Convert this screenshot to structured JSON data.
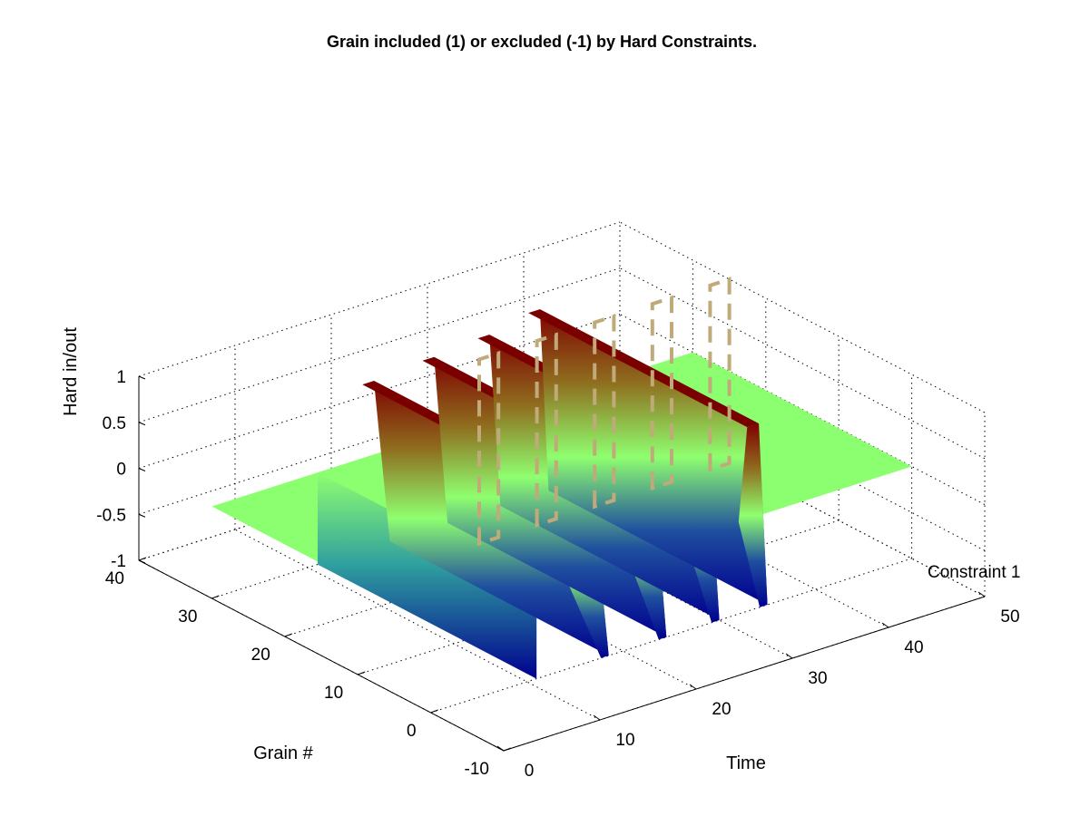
{
  "chart_data": {
    "type": "surface3d",
    "title": "Grain included (1) or excluded (-1) by Hard Constraints.",
    "xlabel": "Time",
    "ylabel": "Grain #",
    "zlabel": "Hard in/out",
    "xlim": [
      0,
      50
    ],
    "ylim": [
      -10,
      40
    ],
    "zlim": [
      -1,
      1
    ],
    "xticks": [
      "0",
      "10",
      "20",
      "30",
      "40",
      "50"
    ],
    "yticks": [
      "-10",
      "0",
      "10",
      "20",
      "30",
      "40"
    ],
    "zticks": [
      "-1",
      "-0.5",
      "0",
      "0.5",
      "1"
    ],
    "grid": true,
    "colormap": "jet",
    "surface": {
      "base_level": 0,
      "time_range": [
        0,
        50
      ],
      "grain_range": [
        0,
        30
      ],
      "spikes": [
        {
          "t_start": 14,
          "t_end": 18.5,
          "z_top": 0.8,
          "z_bottom": -1
        },
        {
          "t_start": 20.5,
          "t_end": 24.5,
          "z_top": 0.85,
          "z_bottom": -1
        },
        {
          "t_start": 26.5,
          "t_end": 30,
          "z_top": 0.9,
          "z_bottom": -1
        },
        {
          "t_start": 32,
          "t_end": 35,
          "z_top": 1,
          "z_bottom": -1
        }
      ],
      "drop_walls": [
        {
          "t": 11,
          "z_bottom": -1
        }
      ]
    },
    "constraints": [
      {
        "name": "Constraint 1",
        "style": "dashed",
        "color": "#c0aa7a",
        "time_windows": [
          [
            24,
            26
          ],
          [
            30,
            32
          ],
          [
            36,
            38
          ],
          [
            42,
            44
          ],
          [
            48,
            50
          ]
        ],
        "grain": 25,
        "z_range": [
          -1,
          1
        ]
      }
    ]
  }
}
